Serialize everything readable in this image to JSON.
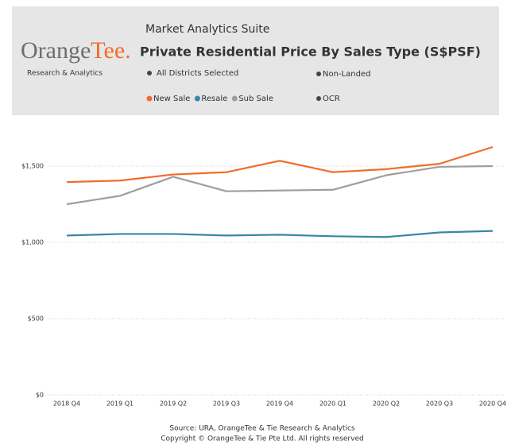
{
  "header": {
    "logo_left": "Orange",
    "logo_right": "Tee.",
    "tagline": "Research & Analytics",
    "suite": "Market Analytics Suite",
    "filters": [
      "All Districts Selected",
      "Non-Landed",
      "OCR"
    ]
  },
  "chart_data": {
    "type": "line",
    "title": "Private Residential Price By Sales Type (S$PSF)",
    "categories": [
      "2018 Q4",
      "2019 Q1",
      "2019 Q2",
      "2019 Q3",
      "2019 Q4",
      "2020 Q1",
      "2020 Q2",
      "2020 Q3",
      "2020 Q4"
    ],
    "series": [
      {
        "name": "New Sale",
        "color": "#f26b2a",
        "values": [
          1395,
          1405,
          1445,
          1460,
          1535,
          1460,
          1480,
          1515,
          1625
        ]
      },
      {
        "name": "Resale",
        "color": "#3a86a8",
        "values": [
          1045,
          1055,
          1055,
          1045,
          1050,
          1040,
          1035,
          1065,
          1075
        ]
      },
      {
        "name": "Sub Sale",
        "color": "#9e9e9e",
        "values": [
          1250,
          1305,
          1430,
          1335,
          1340,
          1345,
          1440,
          1495,
          1500
        ]
      }
    ],
    "ylim": [
      0,
      1750
    ],
    "yticks": [
      {
        "value": 0,
        "label": "$0"
      },
      {
        "value": 500,
        "label": "$500"
      },
      {
        "value": 1000,
        "label": "$1,000"
      },
      {
        "value": 1500,
        "label": "$1,500"
      }
    ],
    "grid": true,
    "footer": [
      "Source: URA, OrangeTee & Tie Research & Analytics",
      "Copyright © OrangeTee & Tie Pte Ltd. All rights reserved"
    ]
  }
}
